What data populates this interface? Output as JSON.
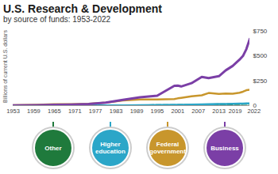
{
  "chart_data": {
    "type": "line",
    "title": "U.S. Research & Development",
    "subtitle": "by source of funds: 1953-2022",
    "y_label": "Billions of current U.S. dollars",
    "x": [
      1953,
      1960,
      1965,
      1970,
      1975,
      1980,
      1985,
      1990,
      1995,
      2000,
      2001,
      2002,
      2005,
      2008,
      2010,
      2013,
      2015,
      2017,
      2019,
      2020,
      2021,
      2022
    ],
    "series": [
      {
        "name": "Other",
        "color": "#1f7a3c",
        "line_style": "dashed",
        "values": [
          0.1,
          0.2,
          0.4,
          0.6,
          0.8,
          1,
          1.5,
          2.5,
          3.4,
          4.2,
          5,
          5.5,
          7,
          8.5,
          10,
          12,
          13,
          15,
          16,
          17,
          18,
          19
        ]
      },
      {
        "name": "Higher education",
        "color": "#2ba6c8",
        "line_style": "solid",
        "values": [
          0.1,
          0.2,
          0.3,
          0.5,
          0.8,
          1.3,
          2.3,
          3.8,
          5,
          7,
          7.8,
          8.6,
          10,
          12,
          13,
          15,
          16,
          17,
          19,
          20,
          21,
          22
        ]
      },
      {
        "name": "Federal government",
        "color": "#c8962c",
        "line_style": "solid",
        "values": [
          3,
          8.7,
          13,
          14.9,
          18.1,
          29.5,
          52,
          61,
          62,
          66,
          73,
          78,
          93,
          104,
          127,
          118,
          121,
          120,
          130,
          140,
          155,
          160
        ]
      },
      {
        "name": "Business",
        "color": "#7b3fa6",
        "line_style": "solid",
        "values": [
          2,
          4.5,
          8,
          10.5,
          15.8,
          30,
          58,
          83,
          100,
          200,
          202,
          193,
          226,
          290,
          278,
          297,
          356,
          400,
          463,
          500,
          570,
          673
        ]
      }
    ],
    "xlim": [
      1953,
      2022
    ],
    "xticks": [
      1953,
      1959,
      1965,
      1971,
      1977,
      1983,
      1989,
      1995,
      2001,
      2007,
      2013,
      2019,
      2022
    ],
    "ylim": [
      0,
      750
    ],
    "yticks": [
      0,
      {
        "value": 250,
        "label": "$250"
      },
      {
        "value": 500,
        "label": "$500"
      },
      {
        "value": 750,
        "label": "$750"
      }
    ],
    "grid": false,
    "legend": "bottom"
  }
}
